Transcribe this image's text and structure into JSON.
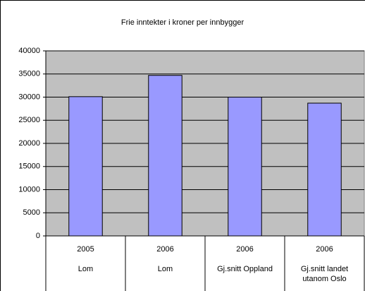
{
  "chart_data": {
    "type": "bar",
    "title": "Frie inntekter i kroner per innbygger",
    "categories": [
      "2005",
      "2006",
      "2006",
      "2006"
    ],
    "subcategories": [
      "Lom",
      "Lom",
      "Gj.snitt Oppland",
      "Gj.snitt landet utanom Oslo"
    ],
    "values": [
      30100,
      34700,
      30000,
      28700
    ],
    "color": "#9999ff",
    "plot_background": "#c0c0c0",
    "ylim": [
      0,
      40000
    ],
    "yticks": [
      0,
      5000,
      10000,
      15000,
      20000,
      25000,
      30000,
      35000,
      40000
    ],
    "grid": true
  }
}
